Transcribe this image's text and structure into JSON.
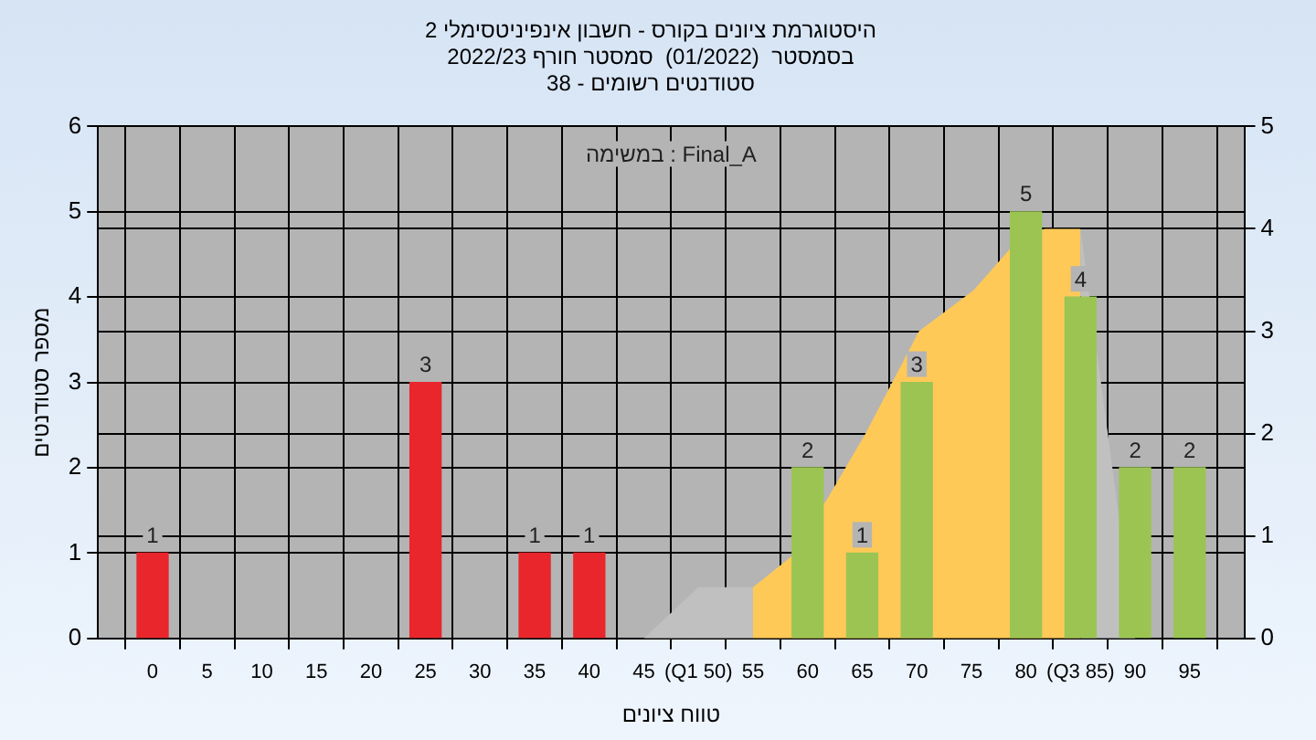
{
  "chart_data": {
    "type": "bar",
    "title": "היסטוגרמת ציונים בקורס - חשבון אינפיניטסימלי 2",
    "subtitle": "בסמסטר  (01/2022)  סמסטר חורף 2022/23\nסטודנטים רשומים - 38",
    "xlabel": "טווח ציונים",
    "ylabel": "מספר סטודנטים",
    "annotations": [
      "במשימה : Final_A"
    ],
    "x": [
      0,
      25,
      35,
      40,
      60,
      65,
      70,
      80,
      85,
      90,
      95
    ],
    "values": [
      1,
      3,
      1,
      1,
      2,
      1,
      3,
      5,
      4,
      2,
      2
    ],
    "colors": [
      "#e8262b",
      "#e8262b",
      "#e8262b",
      "#e8262b",
      "#9bc453",
      "#9bc453",
      "#9bc453",
      "#9bc453",
      "#9bc453",
      "#9bc453",
      "#9bc453"
    ],
    "series": [
      {
        "type": "area",
        "axis": "y2",
        "color": "#c0c0c0",
        "x": [
          45,
          50,
          55,
          70,
          85,
          90
        ],
        "values": [
          0,
          0.5,
          0.5,
          null,
          4,
          0
        ]
      },
      {
        "type": "area",
        "axis": "y2",
        "color": "#ffc957",
        "x": [
          55,
          58.5,
          62,
          65.3,
          70.2,
          75.2,
          78.5,
          81.7,
          85,
          85
        ],
        "values": [
          0.5,
          0.8,
          1.4,
          2,
          3,
          3.4,
          3.8,
          4,
          4,
          0
        ]
      }
    ],
    "value_labels": [
      "1",
      "3",
      "1",
      "1",
      "2",
      "1",
      "3",
      "5",
      "4",
      "2",
      "2"
    ],
    "grid": true,
    "legend": false,
    "xlim": [
      -5,
      100
    ],
    "xticks": [
      {
        "value": -5,
        "label": null
      },
      0,
      5,
      10,
      15,
      20,
      25,
      30,
      35,
      40,
      45,
      {
        "value": 50,
        "label": "(Q1 50)"
      },
      55,
      60,
      65,
      70,
      75,
      80,
      {
        "value": 85,
        "label": "(Q3 85)"
      },
      90,
      95
    ],
    "ylim": [
      0,
      6
    ],
    "yticks": [
      0,
      1,
      2,
      3,
      4,
      5,
      6
    ],
    "y2lim": [
      0,
      5
    ],
    "y2ticks": [
      0,
      1,
      2,
      3,
      4,
      5
    ]
  }
}
